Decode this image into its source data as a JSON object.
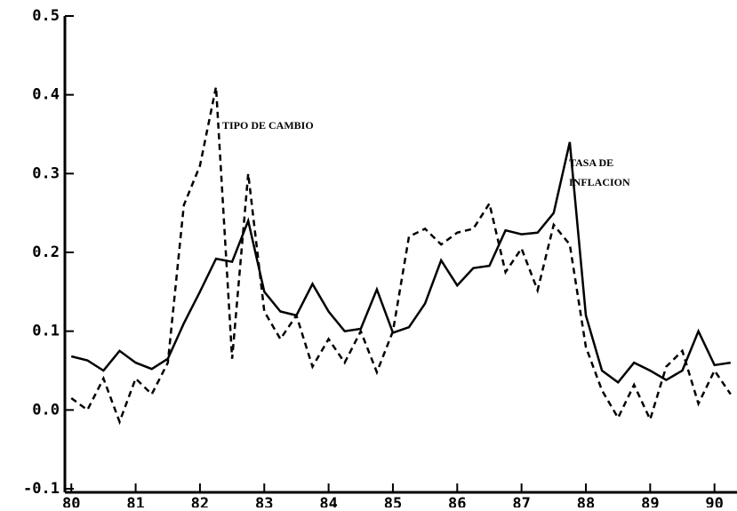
{
  "chart_data": {
    "type": "line",
    "x": [
      80,
      80.25,
      80.5,
      80.75,
      81,
      81.25,
      81.5,
      81.75,
      82,
      82.25,
      82.5,
      82.75,
      83,
      83.25,
      83.5,
      83.75,
      84,
      84.25,
      84.5,
      84.75,
      85,
      85.25,
      85.5,
      85.75,
      86,
      86.25,
      86.5,
      86.75,
      87,
      87.25,
      87.5,
      87.75,
      88,
      88.25,
      88.5,
      88.75,
      89,
      89.25,
      89.5,
      89.75,
      90,
      90.25
    ],
    "series": [
      {
        "name": "TIPO DE CAMBIO",
        "color": "#000000",
        "dash": true,
        "values": [
          0.015,
          0.0,
          0.04,
          -0.015,
          0.04,
          0.02,
          0.06,
          0.26,
          0.31,
          0.41,
          0.065,
          0.3,
          0.125,
          0.09,
          0.12,
          0.055,
          0.09,
          0.06,
          0.1,
          0.048,
          0.1,
          0.22,
          0.23,
          0.21,
          0.225,
          0.23,
          0.262,
          0.175,
          0.205,
          0.152,
          0.235,
          0.21,
          0.08,
          0.025,
          -0.01,
          0.032,
          -0.012,
          0.055,
          0.075,
          0.008,
          0.05,
          0.02
        ]
      },
      {
        "name": "TASA DE INFLACION",
        "color": "#000000",
        "dash": false,
        "values": [
          0.068,
          0.063,
          0.05,
          0.075,
          0.06,
          0.052,
          0.065,
          0.11,
          0.15,
          0.192,
          0.188,
          0.24,
          0.15,
          0.125,
          0.12,
          0.16,
          0.125,
          0.1,
          0.103,
          0.153,
          0.098,
          0.105,
          0.135,
          0.19,
          0.158,
          0.18,
          0.183,
          0.228,
          0.223,
          0.225,
          0.25,
          0.34,
          0.12,
          0.05,
          0.035,
          0.06,
          0.05,
          0.038,
          0.05,
          0.1,
          0.057,
          0.06
        ]
      }
    ],
    "xlim": [
      79.9,
      90.35
    ],
    "xticks": [
      80,
      81,
      82,
      83,
      84,
      85,
      86,
      87,
      88,
      89,
      90
    ],
    "ylim": [
      -0.1,
      0.5
    ],
    "yticks": [
      -0.1,
      {
        "value": 0,
        "label": "0.0"
      },
      0.1,
      0.2,
      0.3,
      0.4,
      0.5
    ]
  }
}
